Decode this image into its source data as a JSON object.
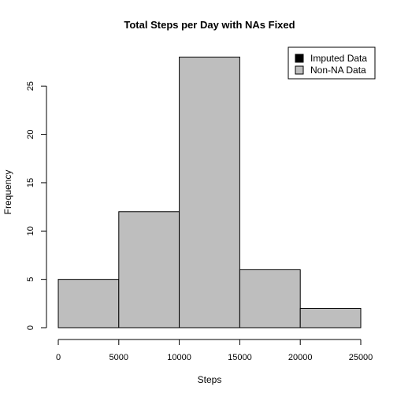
{
  "chart_data": {
    "type": "bar",
    "title": "Total Steps per Day with NAs Fixed",
    "xlabel": "Steps",
    "ylabel": "Frequency",
    "bins": [
      {
        "from": 0,
        "to": 5000,
        "value": 5
      },
      {
        "from": 5000,
        "to": 10000,
        "value": 12
      },
      {
        "from": 10000,
        "to": 15000,
        "value": 28
      },
      {
        "from": 15000,
        "to": 20000,
        "value": 6
      },
      {
        "from": 20000,
        "to": 25000,
        "value": 2
      }
    ],
    "series": [
      {
        "name": "Imputed Data",
        "color": "#000000"
      },
      {
        "name": "Non-NA Data",
        "color": "#bebebe"
      }
    ],
    "xlim": [
      0,
      25000
    ],
    "ylim": [
      0,
      28
    ],
    "xticks": [
      "0",
      "5000",
      "10000",
      "15000",
      "20000",
      "25000"
    ],
    "yticks": [
      "0",
      "5",
      "10",
      "15",
      "20",
      "25"
    ],
    "legend_position": "top-right",
    "grid": false
  }
}
